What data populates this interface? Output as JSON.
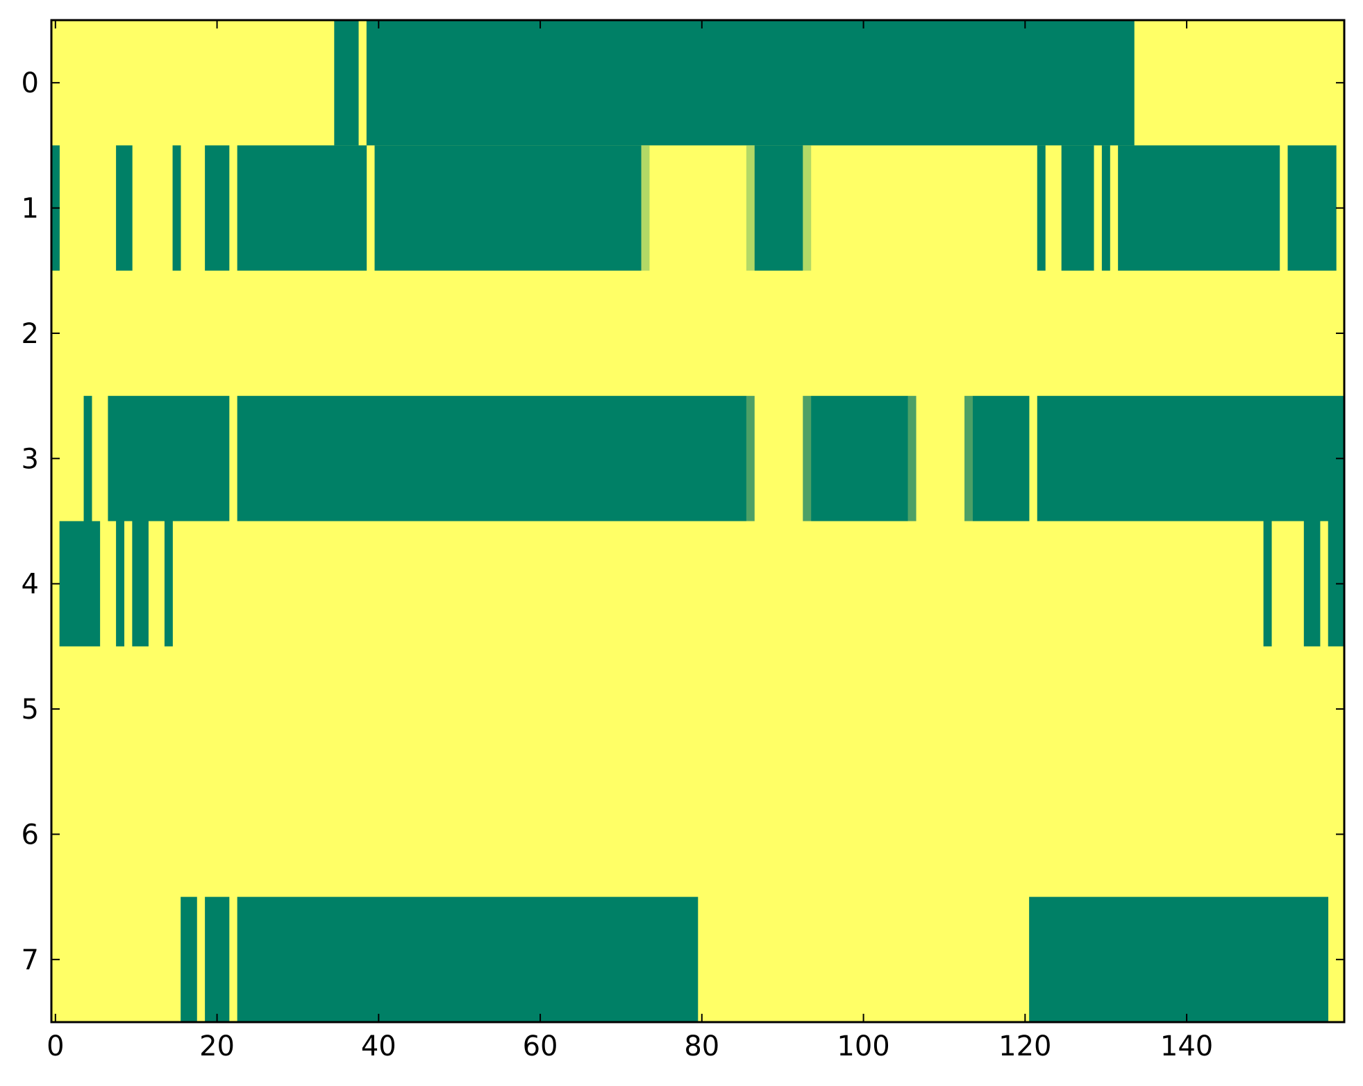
{
  "chart_data": {
    "type": "heatmap",
    "title": "",
    "xlabel": "",
    "ylabel": "",
    "n_columns": 160,
    "xlim": [
      -0.5,
      159.5
    ],
    "ylim": [
      7.5,
      -0.5
    ],
    "x_ticks": [
      0,
      20,
      40,
      60,
      80,
      100,
      120,
      140
    ],
    "y_ticks": [
      0,
      1,
      2,
      3,
      4,
      5,
      6,
      7
    ],
    "grid": false,
    "legend": "none",
    "colors": {
      "low": "#ffff66",
      "high": "#008066",
      "mid_light": "#b3d966",
      "mid_dark": "#4da066"
    },
    "rows": [
      {
        "row": 0,
        "high_runs": [
          [
            35,
            37
          ],
          [
            39,
            133
          ]
        ],
        "mid_light_runs": [],
        "mid_dark_runs": []
      },
      {
        "row": 1,
        "high_runs": [
          [
            0,
            0
          ],
          [
            8,
            9
          ],
          [
            15,
            15
          ],
          [
            19,
            21
          ],
          [
            23,
            38
          ],
          [
            40,
            72
          ],
          [
            87,
            92
          ],
          [
            122,
            122
          ],
          [
            125,
            128
          ],
          [
            130,
            130
          ],
          [
            132,
            151
          ],
          [
            153,
            158
          ]
        ],
        "mid_light_runs": [
          [
            73,
            73
          ],
          [
            86,
            86
          ],
          [
            93,
            93
          ]
        ],
        "mid_dark_runs": []
      },
      {
        "row": 2,
        "high_runs": [],
        "mid_light_runs": [],
        "mid_dark_runs": []
      },
      {
        "row": 3,
        "high_runs": [
          [
            4,
            4
          ],
          [
            7,
            21
          ],
          [
            23,
            85
          ],
          [
            94,
            105
          ],
          [
            114,
            120
          ],
          [
            122,
            159
          ]
        ],
        "mid_light_runs": [],
        "mid_dark_runs": [
          [
            86,
            86
          ],
          [
            93,
            93
          ],
          [
            106,
            106
          ],
          [
            113,
            113
          ]
        ]
      },
      {
        "row": 4,
        "high_runs": [
          [
            1,
            5
          ],
          [
            8,
            8
          ],
          [
            10,
            11
          ],
          [
            14,
            14
          ],
          [
            150,
            150
          ],
          [
            155,
            156
          ],
          [
            158,
            159
          ]
        ],
        "mid_light_runs": [],
        "mid_dark_runs": []
      },
      {
        "row": 5,
        "high_runs": [],
        "mid_light_runs": [],
        "mid_dark_runs": []
      },
      {
        "row": 6,
        "high_runs": [],
        "mid_light_runs": [],
        "mid_dark_runs": []
      },
      {
        "row": 7,
        "high_runs": [
          [
            16,
            17
          ],
          [
            19,
            21
          ],
          [
            23,
            79
          ],
          [
            121,
            157
          ]
        ],
        "mid_light_runs": [],
        "mid_dark_runs": []
      }
    ]
  }
}
